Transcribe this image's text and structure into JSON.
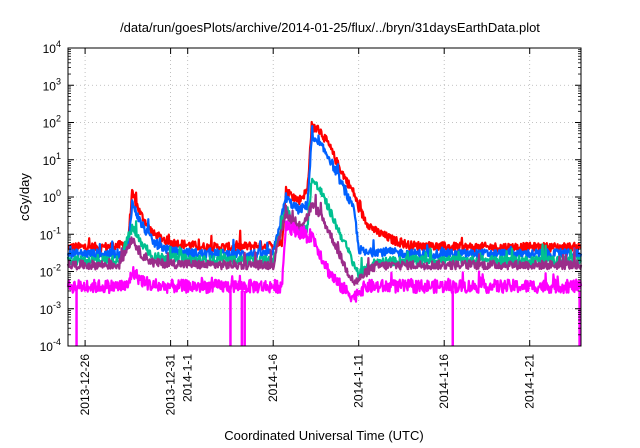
{
  "chart_data": {
    "type": "line",
    "title": "/data/run/goesPlots/archive/2014-01-25/flux/../bryn/31daysEarthData.plot",
    "xlabel": "Coordinated Universal Time (UTC)",
    "ylabel": "cGy/day",
    "yscale": "log",
    "ylim": [
      0.0001,
      10000
    ],
    "y_ticks": [
      {
        "value": 0.0001,
        "base": "10",
        "exp": "-4"
      },
      {
        "value": 0.001,
        "base": "10",
        "exp": "-3"
      },
      {
        "value": 0.01,
        "base": "10",
        "exp": "-2"
      },
      {
        "value": 0.1,
        "base": "10",
        "exp": "-1"
      },
      {
        "value": 1,
        "base": "10",
        "exp": "0"
      },
      {
        "value": 10,
        "base": "10",
        "exp": "1"
      },
      {
        "value": 100,
        "base": "10",
        "exp": "2"
      },
      {
        "value": 1000,
        "base": "10",
        "exp": "3"
      },
      {
        "value": 10000,
        "base": "10",
        "exp": "4"
      }
    ],
    "xlim": [
      "2013-12-25",
      "2014-01-24"
    ],
    "x_ticks": [
      {
        "date": "2013-12-26",
        "label": "2013-12-26"
      },
      {
        "date": "2013-12-31",
        "label": "2013-12-31"
      },
      {
        "date": "2014-01-01",
        "label": "2014-1-1"
      },
      {
        "date": "2014-01-06",
        "label": "2014-1-6"
      },
      {
        "date": "2014-01-11",
        "label": "2014-1-11"
      },
      {
        "date": "2014-01-16",
        "label": "2014-1-16"
      },
      {
        "date": "2014-01-21",
        "label": "2014-1-21"
      }
    ],
    "grid": true,
    "legend": "none",
    "series": [
      {
        "color": "#ff0000",
        "points": [
          [
            "2013-12-25",
            0.045
          ],
          [
            "2013-12-27",
            0.045
          ],
          [
            "2013-12-28",
            0.05
          ],
          [
            "2013-12-28T12:00",
            0.06
          ],
          [
            "2013-12-28T18:00",
            1.2
          ],
          [
            "2013-12-29T06:00",
            0.35
          ],
          [
            "2013-12-30",
            0.1
          ],
          [
            "2013-12-31",
            0.06
          ],
          [
            "2014-01-02",
            0.045
          ],
          [
            "2014-01-04",
            0.045
          ],
          [
            "2014-01-05",
            0.05
          ],
          [
            "2014-01-06",
            0.05
          ],
          [
            "2014-01-06T12:00",
            0.06
          ],
          [
            "2014-01-06T18:00",
            1.5
          ],
          [
            "2014-01-07",
            1.2
          ],
          [
            "2014-01-07T12:00",
            0.8
          ],
          [
            "2014-01-08",
            1.5
          ],
          [
            "2014-01-08T06:00",
            80
          ],
          [
            "2014-01-08T18:00",
            60
          ],
          [
            "2014-01-09T06:00",
            25
          ],
          [
            "2014-01-09T18:00",
            8
          ],
          [
            "2014-01-10T06:00",
            3
          ],
          [
            "2014-01-10T18:00",
            1.2
          ],
          [
            "2014-01-11",
            0.5
          ],
          [
            "2014-01-11T12:00",
            0.2
          ],
          [
            "2014-01-12",
            0.12
          ],
          [
            "2014-01-13",
            0.07
          ],
          [
            "2014-01-14",
            0.05
          ],
          [
            "2014-01-17",
            0.045
          ],
          [
            "2014-01-20",
            0.045
          ],
          [
            "2014-01-24",
            0.045
          ]
        ]
      },
      {
        "color": "#0060ff",
        "points": [
          [
            "2013-12-25",
            0.03
          ],
          [
            "2013-12-27",
            0.03
          ],
          [
            "2013-12-28",
            0.03
          ],
          [
            "2013-12-28T12:00",
            0.04
          ],
          [
            "2013-12-28T18:00",
            0.7
          ],
          [
            "2013-12-29T06:00",
            0.2
          ],
          [
            "2013-12-30",
            0.06
          ],
          [
            "2013-12-31",
            0.035
          ],
          [
            "2014-01-02",
            0.03
          ],
          [
            "2014-01-05",
            0.03
          ],
          [
            "2014-01-06",
            0.03
          ],
          [
            "2014-01-06T18:00",
            1.0
          ],
          [
            "2014-01-07",
            0.7
          ],
          [
            "2014-01-07T12:00",
            0.45
          ],
          [
            "2014-01-08",
            0.6
          ],
          [
            "2014-01-08T06:00",
            35
          ],
          [
            "2014-01-08T18:00",
            25
          ],
          [
            "2014-01-09T06:00",
            12
          ],
          [
            "2014-01-09T18:00",
            4
          ],
          [
            "2014-01-10T06:00",
            1.3
          ],
          [
            "2014-01-10T18:00",
            0.4
          ],
          [
            "2014-01-11",
            0.04
          ],
          [
            "2014-01-11T12:00",
            0.03
          ],
          [
            "2014-01-12",
            0.035
          ],
          [
            "2014-01-14",
            0.03
          ],
          [
            "2014-01-18",
            0.03
          ],
          [
            "2014-01-24",
            0.03
          ]
        ]
      },
      {
        "color": "#00c090",
        "points": [
          [
            "2013-12-25",
            0.02
          ],
          [
            "2013-12-28",
            0.02
          ],
          [
            "2013-12-28T18:00",
            0.15
          ],
          [
            "2013-12-29T06:00",
            0.06
          ],
          [
            "2013-12-30",
            0.025
          ],
          [
            "2014-01-02",
            0.02
          ],
          [
            "2014-01-06",
            0.02
          ],
          [
            "2014-01-06T18:00",
            0.5
          ],
          [
            "2014-01-07",
            0.3
          ],
          [
            "2014-01-07T12:00",
            0.12
          ],
          [
            "2014-01-08",
            0.15
          ],
          [
            "2014-01-08T06:00",
            3
          ],
          [
            "2014-01-08T18:00",
            1.5
          ],
          [
            "2014-01-09T06:00",
            0.5
          ],
          [
            "2014-01-09T18:00",
            0.15
          ],
          [
            "2014-01-10T06:00",
            0.05
          ],
          [
            "2014-01-10T18:00",
            0.015
          ],
          [
            "2014-01-11",
            0.008
          ],
          [
            "2014-01-11T12:00",
            0.012
          ],
          [
            "2014-01-12",
            0.018
          ],
          [
            "2014-01-14",
            0.02
          ],
          [
            "2014-01-24",
            0.02
          ]
        ]
      },
      {
        "color": "#9b2d8a",
        "points": [
          [
            "2013-12-25",
            0.015
          ],
          [
            "2013-12-28",
            0.015
          ],
          [
            "2013-12-28T18:00",
            0.08
          ],
          [
            "2013-12-29T06:00",
            0.03
          ],
          [
            "2013-12-30",
            0.017
          ],
          [
            "2014-01-02",
            0.015
          ],
          [
            "2014-01-06",
            0.015
          ],
          [
            "2014-01-06T18:00",
            0.4
          ],
          [
            "2014-01-07",
            0.25
          ],
          [
            "2014-01-07T12:00",
            0.15
          ],
          [
            "2014-01-08",
            0.3
          ],
          [
            "2014-01-08T06:00",
            0.6
          ],
          [
            "2014-01-08T18:00",
            0.35
          ],
          [
            "2014-01-09T06:00",
            0.12
          ],
          [
            "2014-01-09T18:00",
            0.04
          ],
          [
            "2014-01-10T06:00",
            0.012
          ],
          [
            "2014-01-10T18:00",
            0.005
          ],
          [
            "2014-01-11",
            0.006
          ],
          [
            "2014-01-11T12:00",
            0.01
          ],
          [
            "2014-01-12",
            0.014
          ],
          [
            "2014-01-14",
            0.015
          ],
          [
            "2014-01-24",
            0.015
          ]
        ]
      },
      {
        "color": "#ff00ff",
        "points": [
          [
            "2013-12-25",
            0.004
          ],
          [
            "2013-12-28",
            0.004
          ],
          [
            "2013-12-28T12:00",
            0.004
          ],
          [
            "2013-12-28T18:00",
            0.01
          ],
          [
            "2013-12-29T06:00",
            0.006
          ],
          [
            "2013-12-30",
            0.004
          ],
          [
            "2014-01-02",
            0.004
          ],
          [
            "2014-01-06",
            0.004
          ],
          [
            "2014-01-06T12:00",
            0.004
          ],
          [
            "2014-01-06T18:00",
            0.2
          ],
          [
            "2014-01-07",
            0.15
          ],
          [
            "2014-01-07T12:00",
            0.12
          ],
          [
            "2014-01-08",
            0.08
          ],
          [
            "2014-01-08T06:00",
            0.1
          ],
          [
            "2014-01-08T18:00",
            0.03
          ],
          [
            "2014-01-09T06:00",
            0.01
          ],
          [
            "2014-01-09T18:00",
            0.005
          ],
          [
            "2014-01-10T06:00",
            0.003
          ],
          [
            "2014-01-10T18:00",
            0.002
          ],
          [
            "2014-01-11",
            0.003
          ],
          [
            "2014-01-11T12:00",
            0.004
          ],
          [
            "2014-01-12",
            0.004
          ],
          [
            "2014-01-24",
            0.004
          ]
        ]
      }
    ],
    "dropouts": [
      "2013-12-25T12:00",
      "2014-01-03T12:00",
      "2014-01-04T04:00",
      "2014-01-04T08:00",
      "2014-01-16T12:00",
      "2014-01-23T22:00"
    ],
    "dropout_color": "#ff00ff"
  }
}
